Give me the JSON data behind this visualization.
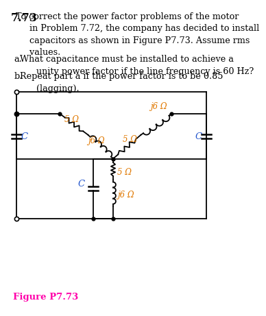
{
  "title_num": "7.73",
  "title_text": "  To correct the power factor problems of the motor\n       in Problem 7.72, the company has decided to install\n       capacitors as shown in Figure P7.73. Assume rms\n       values.",
  "part_a_label": "a.",
  "part_a_text": "  What capacitance must be installed to achieve a\n        unity power factor if the line frequency is 60 Hz?",
  "part_b_label": "b.",
  "part_b_text": "  Repeat part a if the power factor is to be 0.85\n        (lagging).",
  "figure_label": "Figure P7.73",
  "r_label": "5 Ω",
  "l_label": "j6 Ω",
  "c_label": "C",
  "text_color_orange": "#E07800",
  "text_color_blue": "#2255CC",
  "text_color_magenta": "#FF00AA",
  "bg_color": "#ffffff",
  "lw": 1.3
}
